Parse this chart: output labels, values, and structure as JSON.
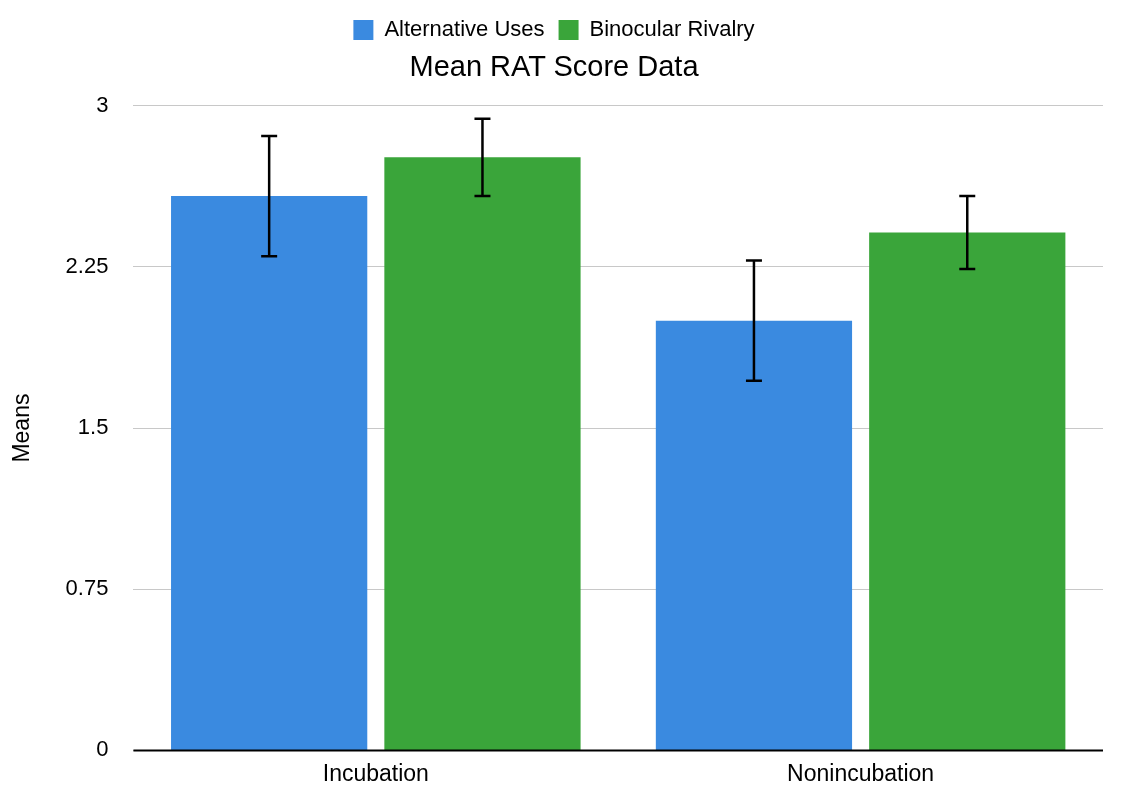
{
  "chart_data": {
    "type": "bar",
    "title": "Mean RAT Score Data",
    "ylabel": "Means",
    "categories": [
      "Incubation",
      "Nonincubation"
    ],
    "series": [
      {
        "name": "Alternative Uses",
        "color": "#3a8ae0",
        "values": [
          2.58,
          2.0
        ],
        "errors": [
          0.28,
          0.28
        ]
      },
      {
        "name": "Binocular Rivalry",
        "color": "#3aa53a",
        "values": [
          2.76,
          2.41
        ],
        "errors": [
          0.18,
          0.17
        ]
      }
    ],
    "ylim": [
      0,
      3
    ],
    "yticks": [
      0,
      0.75,
      1.5,
      2.25,
      3
    ],
    "grid": "y",
    "legend": "top"
  }
}
